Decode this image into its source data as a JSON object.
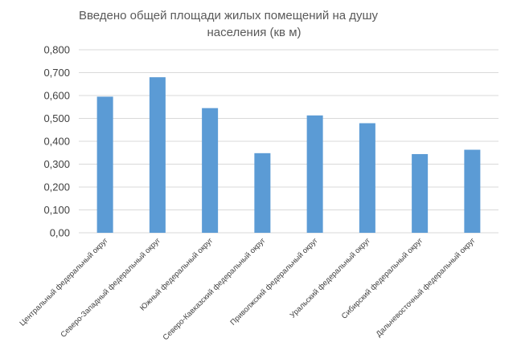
{
  "chart_data": {
    "type": "bar",
    "title_line1": "Введено общей площади жилых помещений на душу",
    "title_line2": "населения (кв м)",
    "categories": [
      "Центральный федеральный округ",
      "Северо-Западный федеральный округ",
      "Южный федеральный округ",
      "Северо-Кавказский федеральный округ",
      "Приволжский федеральный округ",
      "Уральский федеральный округ",
      "Сибирский федеральный округ",
      "Дальневосточный федеральный округ"
    ],
    "values": [
      0.595,
      0.68,
      0.545,
      0.348,
      0.513,
      0.479,
      0.344,
      0.363
    ],
    "ylim": [
      0,
      0.8
    ],
    "yticks": [
      0,
      0.1,
      0.2,
      0.3,
      0.4,
      0.5,
      0.6,
      0.7,
      0.8
    ],
    "ytick_labels": [
      "0,00",
      "0,100",
      "0,200",
      "0,300",
      "0,400",
      "0,500",
      "0,600",
      "0,700",
      "0,800"
    ],
    "grid": true,
    "bar_color": "#5b9bd5",
    "grid_color": "#d9d9d9"
  }
}
